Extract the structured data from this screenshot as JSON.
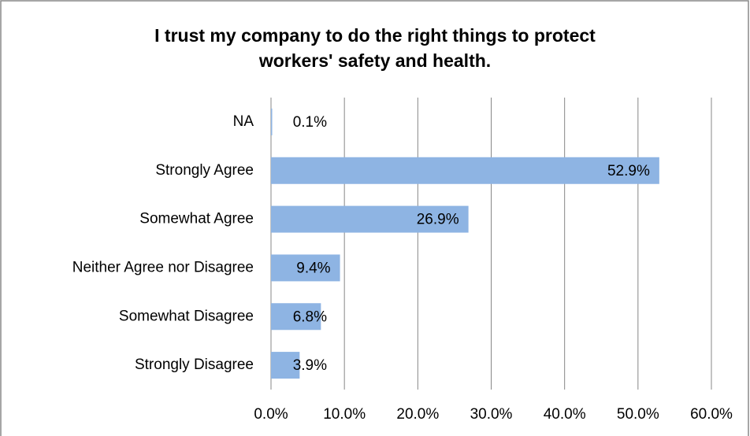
{
  "chart_data": {
    "type": "barh",
    "title": [
      "I trust my company to do the right things to protect",
      "workers' safety and health."
    ],
    "categories": [
      "NA",
      "Strongly Agree",
      "Somewhat Agree",
      "Neither Agree nor Disagree",
      "Somewhat Disagree",
      "Strongly Disagree"
    ],
    "values": [
      0.1,
      52.9,
      26.9,
      9.4,
      6.8,
      3.9
    ],
    "value_labels": [
      "0.1%",
      "52.9%",
      "26.9%",
      "9.4%",
      "6.8%",
      "3.9%"
    ],
    "color": "#8eb4e3",
    "xlim": [
      0,
      60
    ],
    "xticks": [
      {
        "value": 0,
        "label": "0.0%"
      },
      {
        "value": 10,
        "label": "10.0%"
      },
      {
        "value": 20,
        "label": "20.0%"
      },
      {
        "value": 30,
        "label": "30.0%"
      },
      {
        "value": 40,
        "label": "40.0%"
      },
      {
        "value": 50,
        "label": "50.0%"
      },
      {
        "value": 60,
        "label": "60.0%"
      }
    ],
    "grid": true
  }
}
